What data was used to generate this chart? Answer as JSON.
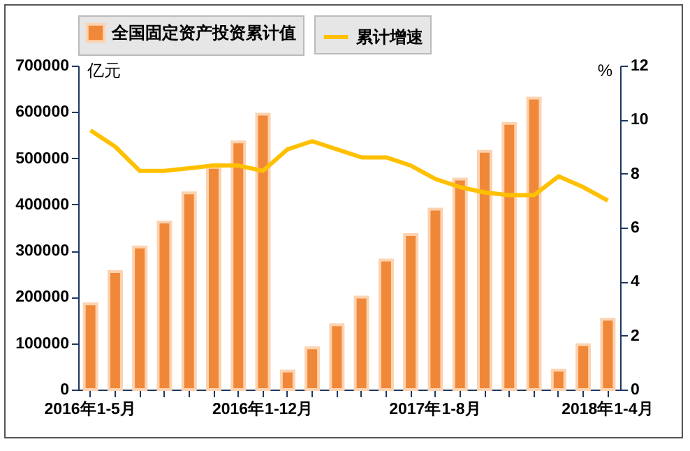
{
  "chart_data": {
    "type": "bar",
    "ylabel": "亿元",
    "y2label": "%",
    "categories": [
      "2016年1-5月",
      null,
      null,
      null,
      null,
      null,
      null,
      "2016年1-12月",
      null,
      null,
      null,
      null,
      null,
      null,
      "2017年1-8月",
      null,
      null,
      null,
      null,
      null,
      null,
      "2018年1-4月"
    ],
    "series": [
      {
        "name": "全国固定资产投资累计值",
        "color": "#f0883a",
        "values": [
          185000,
          255000,
          308000,
          362000,
          425000,
          480000,
          535000,
          595000,
          40000,
          90000,
          140000,
          200000,
          280000,
          335000,
          390000,
          455000,
          515000,
          575000,
          630000,
          42000,
          97000,
          152000
        ]
      },
      {
        "name": "累计增速",
        "type": "line",
        "axis": "y2",
        "color": "#ffc000",
        "values": [
          9.6,
          9.0,
          8.1,
          8.1,
          8.2,
          8.3,
          8.3,
          8.1,
          8.9,
          9.2,
          8.9,
          8.6,
          8.6,
          8.3,
          7.8,
          7.5,
          7.3,
          7.2,
          7.2,
          7.9,
          7.5,
          7.0
        ]
      }
    ],
    "ylim": [
      0,
      700000
    ],
    "yticks": [
      0,
      100000,
      200000,
      300000,
      400000,
      500000,
      600000,
      700000
    ],
    "y2lim": [
      0,
      12
    ],
    "y2ticks": [
      0,
      2,
      4,
      6,
      8,
      10,
      12
    ],
    "legend": "top",
    "grid": false,
    "marker": "none",
    "line_style": "solid"
  }
}
